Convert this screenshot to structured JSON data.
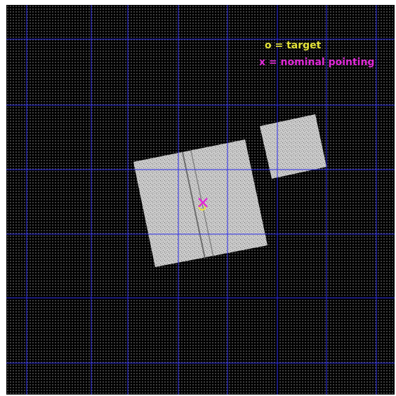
{
  "legend": {
    "target": {
      "label": "o = target",
      "color": "#e4e43a"
    },
    "pointing": {
      "label": "x = nominal pointing",
      "color": "#e02ad8"
    }
  },
  "colors": {
    "background": "#000000",
    "grid": "#2a2ae8",
    "detector": "#c8c8c8",
    "streak": "#4a4a4a"
  },
  "grid": {
    "columns": 6,
    "rows": 6,
    "visible": true
  },
  "markers": {
    "target_symbol": "o",
    "pointing_symbol": "x"
  }
}
